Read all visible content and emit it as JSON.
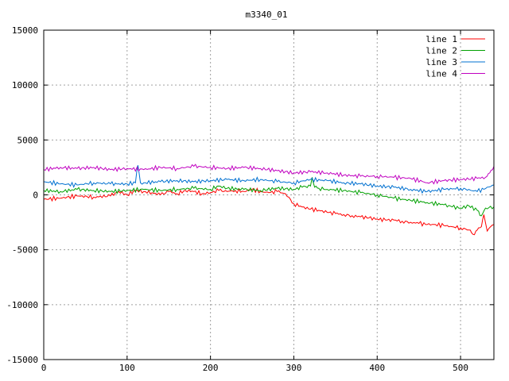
{
  "chart_data": {
    "type": "line",
    "title": "m3340_01",
    "xlabel": "",
    "ylabel": "",
    "xlim": [
      0,
      540
    ],
    "ylim": [
      -15000,
      15000
    ],
    "x_ticks": [
      0,
      100,
      200,
      300,
      400,
      500
    ],
    "y_ticks": [
      -15000,
      -10000,
      -5000,
      0,
      5000,
      10000,
      15000
    ],
    "grid": true,
    "legend_position": "top-right",
    "series": [
      {
        "name": "line 1",
        "color": "#ff0000",
        "x": [
          0,
          20,
          40,
          60,
          80,
          90,
          100,
          110,
          120,
          130,
          140,
          150,
          160,
          170,
          180,
          190,
          200,
          210,
          220,
          230,
          240,
          250,
          260,
          270,
          280,
          290,
          300,
          310,
          320,
          330,
          340,
          350,
          360,
          370,
          380,
          390,
          400,
          410,
          420,
          430,
          440,
          450,
          460,
          470,
          480,
          490,
          500,
          510,
          515,
          520,
          525,
          528,
          532,
          536,
          540
        ],
        "y": [
          -400,
          -300,
          -100,
          -200,
          -100,
          300,
          0,
          400,
          300,
          200,
          0,
          300,
          100,
          400,
          300,
          100,
          200,
          400,
          300,
          400,
          300,
          500,
          300,
          200,
          300,
          100,
          -800,
          -1100,
          -1300,
          -1400,
          -1600,
          -1700,
          -1800,
          -1900,
          -2000,
          -2100,
          -2200,
          -2300,
          -2300,
          -2400,
          -2500,
          -2600,
          -2700,
          -2700,
          -2800,
          -2900,
          -3000,
          -3200,
          -3600,
          -3200,
          -2900,
          -1800,
          -3300,
          -2900,
          -2700
        ]
      },
      {
        "name": "line 2",
        "color": "#00a000",
        "x": [
          0,
          20,
          40,
          60,
          80,
          100,
          120,
          140,
          160,
          180,
          200,
          210,
          220,
          240,
          260,
          280,
          300,
          310,
          320,
          322,
          325,
          330,
          340,
          360,
          380,
          400,
          420,
          440,
          460,
          480,
          490,
          500,
          510,
          520,
          525,
          530,
          540
        ],
        "y": [
          400,
          300,
          500,
          400,
          300,
          400,
          500,
          400,
          500,
          600,
          500,
          800,
          600,
          500,
          400,
          600,
          500,
          700,
          800,
          1600,
          700,
          600,
          500,
          400,
          200,
          0,
          -300,
          -500,
          -700,
          -900,
          -1100,
          -1200,
          -1000,
          -1400,
          -1900,
          -1200,
          -1100
        ]
      },
      {
        "name": "line 3",
        "color": "#0070d0",
        "x": [
          0,
          20,
          40,
          60,
          80,
          100,
          110,
          113,
          116,
          120,
          140,
          160,
          180,
          200,
          220,
          240,
          260,
          280,
          300,
          320,
          340,
          360,
          380,
          400,
          420,
          440,
          460,
          480,
          500,
          520,
          540
        ],
        "y": [
          1200,
          1000,
          900,
          1100,
          1000,
          1000,
          1100,
          2700,
          1100,
          1100,
          1200,
          1300,
          1200,
          1300,
          1400,
          1300,
          1400,
          1200,
          1100,
          1400,
          1300,
          1100,
          1000,
          800,
          700,
          500,
          300,
          500,
          600,
          300,
          900
        ]
      },
      {
        "name": "line 4",
        "color": "#c000c0",
        "x": [
          0,
          20,
          40,
          60,
          80,
          100,
          120,
          140,
          160,
          180,
          200,
          220,
          240,
          260,
          280,
          300,
          320,
          340,
          360,
          380,
          400,
          420,
          440,
          460,
          480,
          500,
          520,
          530,
          535,
          540
        ],
        "y": [
          2300,
          2500,
          2400,
          2500,
          2300,
          2400,
          2300,
          2500,
          2400,
          2600,
          2500,
          2400,
          2500,
          2400,
          2200,
          2000,
          2100,
          2000,
          1800,
          1700,
          1700,
          1600,
          1500,
          1100,
          1300,
          1400,
          1500,
          1600,
          2000,
          2600
        ]
      }
    ]
  }
}
